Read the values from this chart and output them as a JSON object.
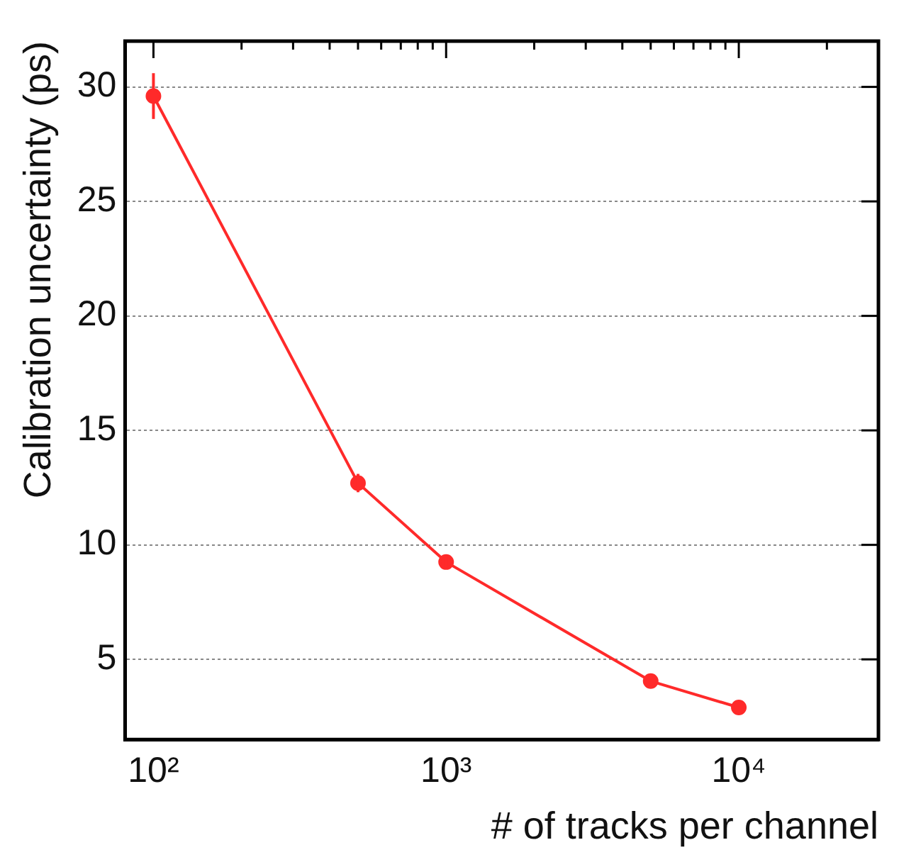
{
  "chart_data": {
    "type": "line",
    "xlabel": "# of tracks per channel",
    "ylabel": "Calibration uncertainty (ps)",
    "x": [
      100,
      500,
      1000,
      5000,
      10000
    ],
    "series": [
      {
        "color": "#ff2a2a",
        "values": [
          29.6,
          12.7,
          9.25,
          4.05,
          2.9
        ],
        "errors": [
          1.0,
          0.4,
          0.25,
          null,
          null
        ]
      }
    ],
    "log": "x",
    "xlim": [
      80,
      30000
    ],
    "ylim": [
      1.5,
      32
    ],
    "xticks": [
      {
        "value": 100,
        "label": "10²"
      },
      {
        "value": 200,
        "label": null
      },
      {
        "value": 300,
        "label": null
      },
      {
        "value": 400,
        "label": null
      },
      {
        "value": 500,
        "label": null
      },
      {
        "value": 600,
        "label": null
      },
      {
        "value": 700,
        "label": null
      },
      {
        "value": 800,
        "label": null
      },
      {
        "value": 900,
        "label": null
      },
      {
        "value": 1000,
        "label": "10³"
      },
      {
        "value": 2000,
        "label": null
      },
      {
        "value": 3000,
        "label": null
      },
      {
        "value": 4000,
        "label": null
      },
      {
        "value": 5000,
        "label": null
      },
      {
        "value": 6000,
        "label": null
      },
      {
        "value": 7000,
        "label": null
      },
      {
        "value": 8000,
        "label": null
      },
      {
        "value": 9000,
        "label": null
      },
      {
        "value": 10000,
        "label": "10⁴"
      },
      {
        "value": 20000,
        "label": null
      }
    ],
    "yticks": [
      5,
      10,
      15,
      20,
      25,
      30
    ],
    "grid": "y",
    "marker": "circle",
    "line_style": "solid",
    "legend": false
  }
}
